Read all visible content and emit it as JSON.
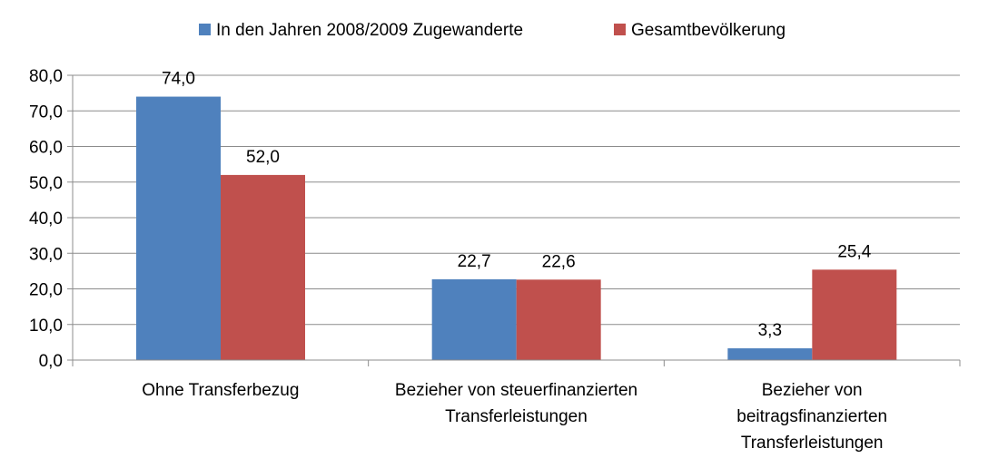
{
  "chart_data": {
    "type": "bar",
    "categories": [
      [
        "Ohne Transferbezug"
      ],
      [
        "Bezieher von steuerfinanzierten",
        "Transferleistungen"
      ],
      [
        "Bezieher von",
        "beitragsfinanzierten",
        "Transferleistungen"
      ]
    ],
    "series": [
      {
        "name": "In den Jahren 2008/2009 Zugewanderte",
        "color": "#4F81BD",
        "values": [
          74.0,
          22.7,
          3.3
        ],
        "labels": [
          "74,0",
          "22,7",
          "3,3"
        ]
      },
      {
        "name": "Gesamtbevölkerung",
        "color": "#C0504D",
        "values": [
          52.0,
          22.6,
          25.4
        ],
        "labels": [
          "52,0",
          "22,6",
          "25,4"
        ]
      }
    ],
    "ylim": [
      0,
      80
    ],
    "yticks": [
      0,
      10,
      20,
      30,
      40,
      50,
      60,
      70,
      80
    ],
    "ytick_labels": [
      "0,0",
      "10,0",
      "20,0",
      "30,0",
      "40,0",
      "50,0",
      "60,0",
      "70,0",
      "80,0"
    ],
    "grid": true,
    "legend_position": "top"
  }
}
